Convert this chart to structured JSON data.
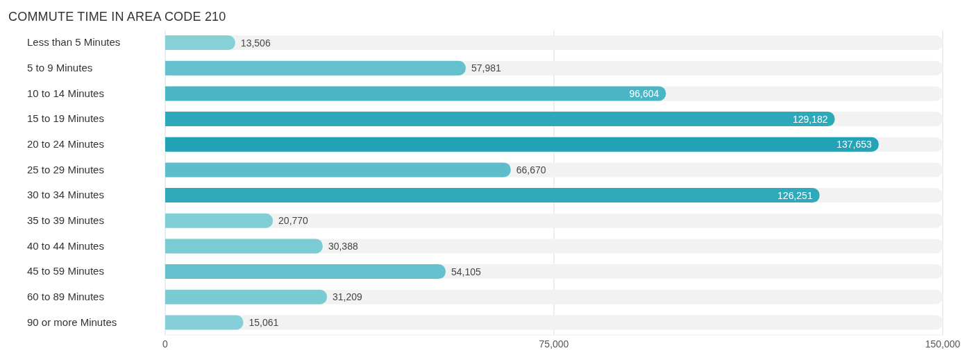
{
  "chart_data": {
    "type": "bar",
    "orientation": "horizontal",
    "title": "COMMUTE TIME IN AREA CODE 210",
    "categories": [
      "Less than 5 Minutes",
      "5 to 9 Minutes",
      "10 to 14 Minutes",
      "15 to 19 Minutes",
      "20 to 24 Minutes",
      "25 to 29 Minutes",
      "30 to 34 Minutes",
      "35 to 39 Minutes",
      "40 to 44 Minutes",
      "45 to 59 Minutes",
      "60 to 89 Minutes",
      "90 or more Minutes"
    ],
    "values": [
      13506,
      57981,
      96604,
      129182,
      137653,
      66670,
      126251,
      20770,
      30388,
      54105,
      31209,
      15061
    ],
    "value_labels": [
      "13,506",
      "57,981",
      "96,604",
      "129,182",
      "137,653",
      "66,670",
      "126,251",
      "20,770",
      "30,388",
      "54,105",
      "31,209",
      "15,061"
    ],
    "colors": [
      "#86d0d8",
      "#64c0cd",
      "#4ab5c4",
      "#2ea9ba",
      "#23a3b5",
      "#5dbdcb",
      "#30aabb",
      "#82ced7",
      "#7bcbd5",
      "#66c1ce",
      "#7acad4",
      "#85cfd8"
    ],
    "xlim": [
      0,
      150000
    ],
    "xticks": [
      {
        "value": 0,
        "label": "0"
      },
      {
        "value": 75000,
        "label": "75,000"
      },
      {
        "value": 150000,
        "label": "150,000"
      }
    ],
    "grid": "x"
  }
}
